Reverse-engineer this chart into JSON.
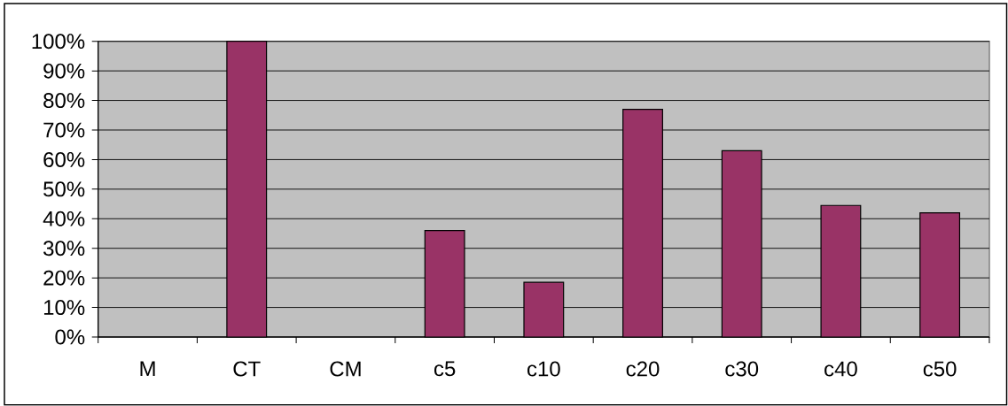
{
  "chart_data": {
    "type": "bar",
    "categories": [
      "M",
      "CT",
      "CM",
      "c5",
      "c10",
      "c20",
      "c30",
      "c40",
      "c50"
    ],
    "values": [
      null,
      100,
      null,
      36,
      18.5,
      77,
      63,
      44.5,
      42
    ],
    "color": "#993366",
    "ylim": [
      0,
      100
    ],
    "yticks": [
      {
        "value": 0,
        "label": "0%"
      },
      {
        "value": 10,
        "label": "10%"
      },
      {
        "value": 20,
        "label": "20%"
      },
      {
        "value": 30,
        "label": "30%"
      },
      {
        "value": 40,
        "label": "40%"
      },
      {
        "value": 50,
        "label": "50%"
      },
      {
        "value": 60,
        "label": "60%"
      },
      {
        "value": 70,
        "label": "70%"
      },
      {
        "value": 80,
        "label": "80%"
      },
      {
        "value": 90,
        "label": "90%"
      },
      {
        "value": 100,
        "label": "100%"
      }
    ],
    "grid": "y"
  }
}
